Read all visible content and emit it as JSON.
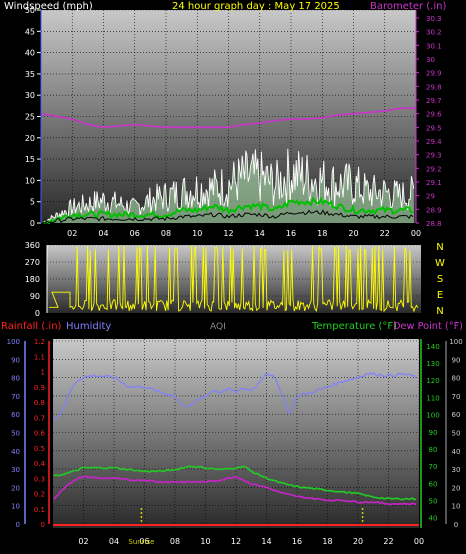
{
  "colors": {
    "wind_avg": "#00c000",
    "wind_gust": "#ffffff",
    "wind_fill": "#b8f0b8",
    "barometer": "#cc33cc",
    "direction": "#ffff00",
    "humidity": "#8080ff",
    "temperature": "#22cc22",
    "dewpoint": "#cc22cc",
    "rainfall": "#ff2020",
    "title": "#ffff00",
    "white_text": "#ffffff",
    "aqi": "#888888",
    "sunrise": "#cccc00"
  },
  "chart_data": [
    {
      "type": "area",
      "title": "24 hour graph day : May 17 2025",
      "left_label": "Windspeed (mph)",
      "right_label": "Barometer (.in)",
      "left_ticks": [
        "0",
        "5",
        "10",
        "15",
        "20",
        "25",
        "30",
        "35",
        "40",
        "45",
        "50"
      ],
      "left_lim": [
        0,
        50
      ],
      "right_ticks": [
        "28.8",
        "28.9",
        "29",
        "29.1",
        "29.2",
        "29.3",
        "29.4",
        "29.5",
        "29.6",
        "29.7",
        "29.8",
        "29.9",
        "30",
        "30.1",
        "30.2",
        "30.3"
      ],
      "right_lim": [
        28.8,
        30.3
      ],
      "x_ticks": [
        "02",
        "04",
        "06",
        "08",
        "10",
        "12",
        "14",
        "16",
        "18",
        "20",
        "22",
        "00"
      ],
      "x_lim": [
        0,
        24
      ],
      "series": [
        {
          "role": "gust",
          "x": [
            0,
            1,
            2,
            3,
            4,
            5,
            6,
            7,
            8,
            9,
            10,
            11,
            12,
            13,
            14,
            15,
            16,
            17,
            18,
            19,
            20,
            21,
            22,
            23,
            24
          ],
          "values": [
            0,
            2,
            4,
            5,
            6,
            5,
            4,
            6,
            7,
            8,
            9,
            9,
            10,
            12,
            12,
            10,
            13,
            12,
            11,
            10,
            10,
            8,
            8,
            7,
            8
          ]
        },
        {
          "role": "avg",
          "x": [
            0,
            1,
            2,
            3,
            4,
            5,
            6,
            7,
            8,
            9,
            10,
            11,
            12,
            13,
            14,
            15,
            16,
            17,
            18,
            19,
            20,
            21,
            22,
            23,
            24
          ],
          "values": [
            0,
            1,
            2,
            2,
            2,
            2,
            2,
            2,
            2,
            3,
            3,
            4,
            3,
            4,
            4,
            3,
            5,
            5,
            5,
            4,
            3,
            3,
            3,
            3,
            3
          ]
        },
        {
          "role": "barometer",
          "x": [
            0,
            1,
            2,
            3,
            4,
            5,
            6,
            7,
            8,
            9,
            10,
            11,
            12,
            13,
            14,
            15,
            16,
            17,
            18,
            19,
            20,
            21,
            22,
            23,
            24
          ],
          "values": [
            29.6,
            29.58,
            29.56,
            29.52,
            29.5,
            29.51,
            29.52,
            29.51,
            29.5,
            29.5,
            29.5,
            29.5,
            29.5,
            29.52,
            29.53,
            29.55,
            29.56,
            29.56,
            29.57,
            29.59,
            29.6,
            29.61,
            29.62,
            29.64,
            29.64
          ]
        }
      ]
    },
    {
      "type": "line",
      "left_ticks": [
        "0",
        "90",
        "180",
        "270",
        "360"
      ],
      "left_lim": [
        0,
        360
      ],
      "right_labels": [
        "N",
        "W",
        "S",
        "E",
        "N"
      ],
      "series": [
        {
          "role": "direction",
          "x": [
            0,
            0.8,
            0.85,
            1.5,
            1.55,
            3,
            4,
            6,
            8,
            10,
            12,
            14,
            16,
            18,
            20,
            22,
            24
          ],
          "values": [
            0,
            0,
            110,
            110,
            0,
            60,
            30,
            45,
            20,
            40,
            25,
            30,
            40,
            50,
            30,
            35,
            20
          ]
        }
      ]
    },
    {
      "type": "line",
      "left_label_rain": "Rainfall (.in)",
      "left_label_hum": "Humidity",
      "center_label": "AQI",
      "right_label_temp": "Temperature (°F)",
      "right_label_dew": "Dew Point (°F)",
      "hum_ticks": [
        "0",
        "10",
        "20",
        "30",
        "40",
        "50",
        "60",
        "70",
        "80",
        "90",
        "100"
      ],
      "hum_lim": [
        0,
        100
      ],
      "rain_ticks": [
        "0",
        "0.1",
        "0.2",
        "0.3",
        "0.4",
        "0.5",
        "0.6",
        "0.7",
        "0.8",
        "0.9",
        "1",
        "1.1",
        "1.2"
      ],
      "rain_lim": [
        0,
        1.2
      ],
      "temp_ticks": [
        "40",
        "50",
        "60",
        "70",
        "80",
        "90",
        "100",
        "110",
        "120",
        "130",
        "140"
      ],
      "temp_lim": [
        34,
        144
      ],
      "dew_ticks": [
        "0",
        "10",
        "20",
        "30",
        "40",
        "50",
        "60",
        "70",
        "80",
        "90",
        "100"
      ],
      "x_ticks": [
        "02",
        "04",
        "06",
        "08",
        "10",
        "12",
        "14",
        "16",
        "18",
        "20",
        "22",
        "00"
      ],
      "sunrise_label": "Sunrise",
      "series": [
        {
          "role": "humidity",
          "x": [
            0,
            0.5,
            1,
            1.5,
            2,
            2.5,
            3,
            4,
            5,
            6,
            7,
            8,
            8.5,
            9,
            9.5,
            10,
            10.5,
            11,
            11.5,
            12,
            12.5,
            13,
            13.5,
            14,
            14.5,
            15,
            15.5,
            16,
            17,
            18,
            19,
            20,
            20.5,
            21,
            22,
            23,
            24
          ],
          "values": [
            57,
            60,
            70,
            78,
            80,
            81,
            81,
            80,
            75,
            75,
            72,
            70,
            65,
            64,
            68,
            70,
            73,
            72,
            74,
            72,
            74,
            73,
            77,
            83,
            80,
            72,
            60,
            70,
            72,
            75,
            78,
            80,
            82,
            82,
            81,
            82,
            80
          ]
        },
        {
          "role": "temperature",
          "x": [
            0,
            1,
            2,
            3,
            4,
            5,
            6,
            7,
            8,
            9,
            10,
            11,
            12,
            12.5,
            13,
            14,
            15,
            16,
            17,
            18,
            19,
            20,
            21,
            22,
            23,
            24
          ],
          "values": [
            64,
            66,
            69,
            69,
            69,
            68,
            67,
            67,
            68,
            70,
            69,
            68,
            69,
            70,
            67,
            63,
            60,
            58,
            57,
            56,
            55,
            54,
            52,
            51,
            51,
            51
          ]
        },
        {
          "role": "dewpoint",
          "x": [
            0,
            1,
            2,
            3,
            4,
            5,
            6,
            7,
            8,
            9,
            10,
            11,
            12,
            13,
            14,
            15,
            16,
            17,
            18,
            19,
            20,
            21,
            22,
            23,
            24
          ],
          "values": [
            13,
            22,
            26,
            25,
            25,
            24,
            24,
            23,
            23,
            23,
            23,
            24,
            26,
            22,
            20,
            17,
            15,
            14,
            13,
            13,
            12,
            12,
            11,
            11,
            11
          ]
        },
        {
          "role": "rainfall",
          "x": [
            0,
            24
          ],
          "values": [
            0,
            0
          ]
        }
      ],
      "sunrise_x": 5.8,
      "sunset_x": 20.3
    }
  ]
}
